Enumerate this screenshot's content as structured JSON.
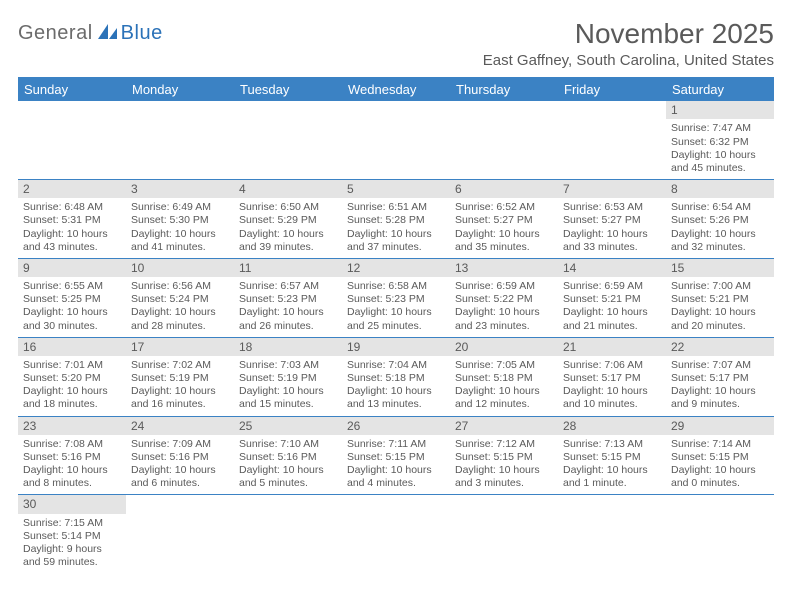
{
  "logo": {
    "part1": "General",
    "part2": "Blue"
  },
  "title": "November 2025",
  "location": "East Gaffney, South Carolina, United States",
  "colors": {
    "header_bg": "#3b82c4",
    "header_text": "#ffffff",
    "daynum_bg": "#e4e4e4",
    "text": "#5a5a5a",
    "rule": "#3b82c4"
  },
  "weekdays": [
    "Sunday",
    "Monday",
    "Tuesday",
    "Wednesday",
    "Thursday",
    "Friday",
    "Saturday"
  ],
  "grid": [
    [
      null,
      null,
      null,
      null,
      null,
      null,
      {
        "n": "1",
        "sr": "7:47 AM",
        "ss": "6:32 PM",
        "dl": "10 hours and 45 minutes."
      }
    ],
    [
      {
        "n": "2",
        "sr": "6:48 AM",
        "ss": "5:31 PM",
        "dl": "10 hours and 43 minutes."
      },
      {
        "n": "3",
        "sr": "6:49 AM",
        "ss": "5:30 PM",
        "dl": "10 hours and 41 minutes."
      },
      {
        "n": "4",
        "sr": "6:50 AM",
        "ss": "5:29 PM",
        "dl": "10 hours and 39 minutes."
      },
      {
        "n": "5",
        "sr": "6:51 AM",
        "ss": "5:28 PM",
        "dl": "10 hours and 37 minutes."
      },
      {
        "n": "6",
        "sr": "6:52 AM",
        "ss": "5:27 PM",
        "dl": "10 hours and 35 minutes."
      },
      {
        "n": "7",
        "sr": "6:53 AM",
        "ss": "5:27 PM",
        "dl": "10 hours and 33 minutes."
      },
      {
        "n": "8",
        "sr": "6:54 AM",
        "ss": "5:26 PM",
        "dl": "10 hours and 32 minutes."
      }
    ],
    [
      {
        "n": "9",
        "sr": "6:55 AM",
        "ss": "5:25 PM",
        "dl": "10 hours and 30 minutes."
      },
      {
        "n": "10",
        "sr": "6:56 AM",
        "ss": "5:24 PM",
        "dl": "10 hours and 28 minutes."
      },
      {
        "n": "11",
        "sr": "6:57 AM",
        "ss": "5:23 PM",
        "dl": "10 hours and 26 minutes."
      },
      {
        "n": "12",
        "sr": "6:58 AM",
        "ss": "5:23 PM",
        "dl": "10 hours and 25 minutes."
      },
      {
        "n": "13",
        "sr": "6:59 AM",
        "ss": "5:22 PM",
        "dl": "10 hours and 23 minutes."
      },
      {
        "n": "14",
        "sr": "6:59 AM",
        "ss": "5:21 PM",
        "dl": "10 hours and 21 minutes."
      },
      {
        "n": "15",
        "sr": "7:00 AM",
        "ss": "5:21 PM",
        "dl": "10 hours and 20 minutes."
      }
    ],
    [
      {
        "n": "16",
        "sr": "7:01 AM",
        "ss": "5:20 PM",
        "dl": "10 hours and 18 minutes."
      },
      {
        "n": "17",
        "sr": "7:02 AM",
        "ss": "5:19 PM",
        "dl": "10 hours and 16 minutes."
      },
      {
        "n": "18",
        "sr": "7:03 AM",
        "ss": "5:19 PM",
        "dl": "10 hours and 15 minutes."
      },
      {
        "n": "19",
        "sr": "7:04 AM",
        "ss": "5:18 PM",
        "dl": "10 hours and 13 minutes."
      },
      {
        "n": "20",
        "sr": "7:05 AM",
        "ss": "5:18 PM",
        "dl": "10 hours and 12 minutes."
      },
      {
        "n": "21",
        "sr": "7:06 AM",
        "ss": "5:17 PM",
        "dl": "10 hours and 10 minutes."
      },
      {
        "n": "22",
        "sr": "7:07 AM",
        "ss": "5:17 PM",
        "dl": "10 hours and 9 minutes."
      }
    ],
    [
      {
        "n": "23",
        "sr": "7:08 AM",
        "ss": "5:16 PM",
        "dl": "10 hours and 8 minutes."
      },
      {
        "n": "24",
        "sr": "7:09 AM",
        "ss": "5:16 PM",
        "dl": "10 hours and 6 minutes."
      },
      {
        "n": "25",
        "sr": "7:10 AM",
        "ss": "5:16 PM",
        "dl": "10 hours and 5 minutes."
      },
      {
        "n": "26",
        "sr": "7:11 AM",
        "ss": "5:15 PM",
        "dl": "10 hours and 4 minutes."
      },
      {
        "n": "27",
        "sr": "7:12 AM",
        "ss": "5:15 PM",
        "dl": "10 hours and 3 minutes."
      },
      {
        "n": "28",
        "sr": "7:13 AM",
        "ss": "5:15 PM",
        "dl": "10 hours and 1 minute."
      },
      {
        "n": "29",
        "sr": "7:14 AM",
        "ss": "5:15 PM",
        "dl": "10 hours and 0 minutes."
      }
    ],
    [
      {
        "n": "30",
        "sr": "7:15 AM",
        "ss": "5:14 PM",
        "dl": "9 hours and 59 minutes."
      },
      null,
      null,
      null,
      null,
      null,
      null
    ]
  ],
  "labels": {
    "sunrise": "Sunrise:",
    "sunset": "Sunset:",
    "daylight": "Daylight:"
  }
}
